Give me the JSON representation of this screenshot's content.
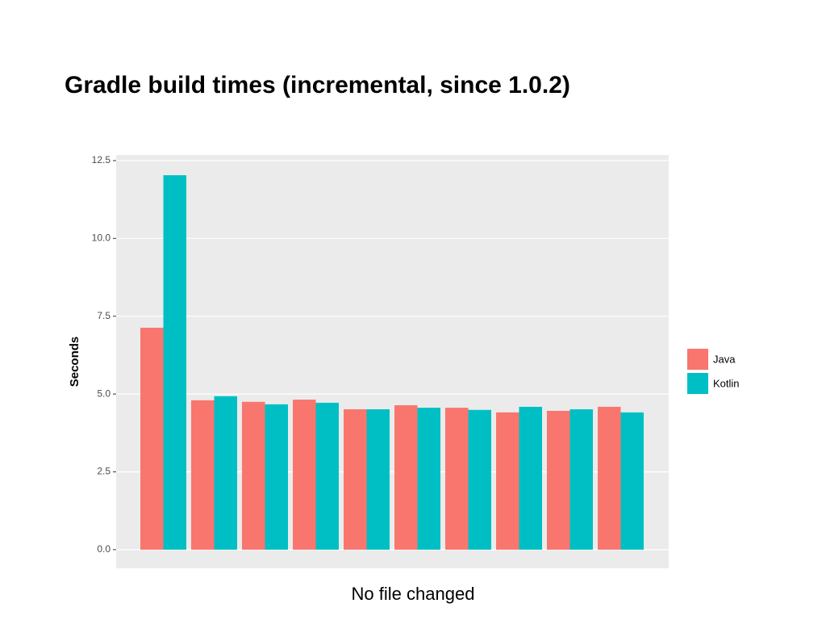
{
  "chart_data": {
    "type": "bar",
    "title": "Gradle build times (incremental, since 1.0.2)",
    "y_label": "Seconds",
    "caption": "No file changed",
    "categories": [
      null,
      null,
      null,
      null,
      null,
      null,
      null,
      null,
      null,
      null
    ],
    "series": [
      {
        "name": "Java",
        "color": "#f8766d",
        "values": [
          7.13,
          4.8,
          4.75,
          4.82,
          4.51,
          4.64,
          4.56,
          4.41,
          4.46,
          4.59
        ]
      },
      {
        "name": "Kotlin",
        "color": "#00bfc4",
        "values": [
          12.03,
          4.93,
          4.67,
          4.72,
          4.51,
          4.56,
          4.49,
          4.59,
          4.51,
          4.41
        ]
      }
    ],
    "ylim": [
      -0.6,
      12.68
    ],
    "yticks": [
      {
        "value": 0,
        "label": "0.0"
      },
      2.5,
      {
        "value": 5,
        "label": "5.0"
      },
      7.5,
      {
        "value": 10,
        "label": "10.0"
      },
      12.5
    ],
    "grid": true,
    "legend": "right"
  }
}
